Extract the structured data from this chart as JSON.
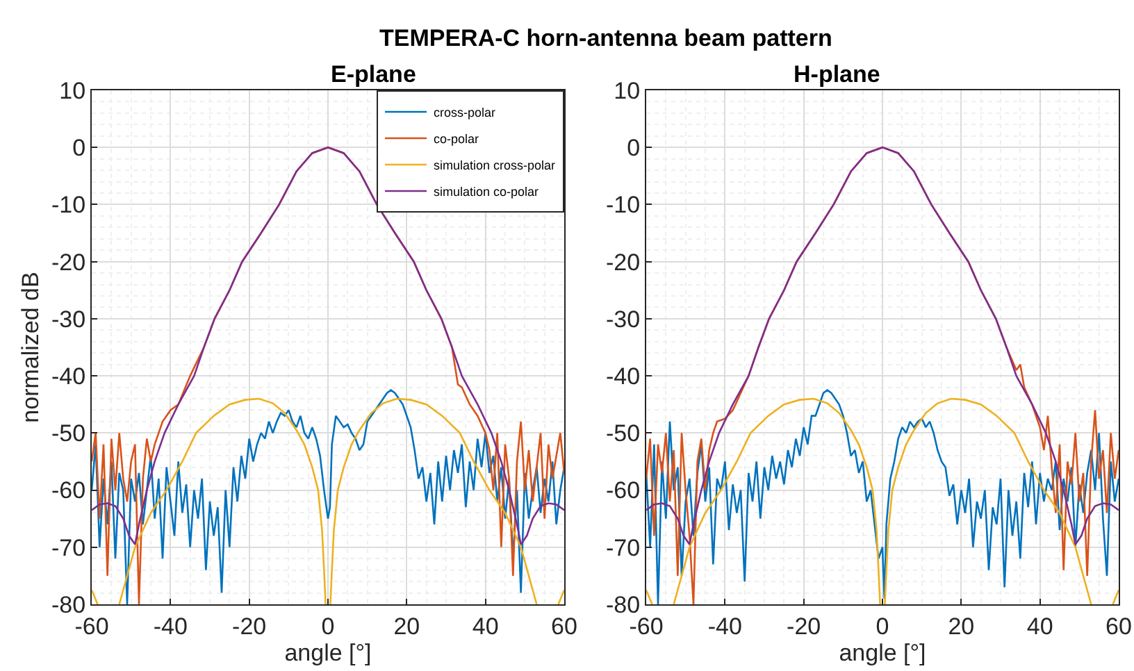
{
  "chart_data": [
    {
      "type": "line",
      "title": "E-plane",
      "xlabel": "angle [°]",
      "ylabel": "normalized dB",
      "annotations": [
        "TEMPERA-C horn-antenna beam pattern"
      ],
      "xlim": [
        -60,
        60
      ],
      "ylim": [
        -80,
        10
      ],
      "xticks": [
        -60,
        -40,
        -20,
        0,
        20,
        40,
        60
      ],
      "yticks": [
        -80,
        -70,
        -60,
        -50,
        -40,
        -30,
        -20,
        -10,
        0,
        10
      ],
      "grid": true,
      "legend": "top right",
      "marker": "none",
      "line_style": "solid",
      "series": [
        {
          "name": "cross-polar",
          "color": "#0072bd",
          "x": [
            -60,
            -59,
            -58,
            -57,
            -56,
            -55,
            -54,
            -53,
            -52,
            -51,
            -50,
            -49,
            -48,
            -47,
            -46,
            -45,
            -44,
            -43,
            -42,
            -41,
            -40,
            -39,
            -38,
            -37,
            -36,
            -35,
            -34,
            -33,
            -32,
            -31,
            -30,
            -29,
            -28,
            -27,
            -26,
            -25,
            -24,
            -23,
            -22,
            -21,
            -20,
            -19,
            -18,
            -17,
            -16,
            -15,
            -14,
            -13,
            -12,
            -11,
            -10,
            -9,
            -8,
            -7,
            -6,
            -5,
            -4,
            -3,
            -2,
            -1,
            0,
            0.5,
            1,
            2,
            3,
            4,
            5,
            6,
            7,
            8,
            9,
            10,
            11,
            12,
            13,
            14,
            15,
            16,
            17,
            18,
            19,
            20,
            21,
            22,
            23,
            24,
            25,
            26,
            27,
            28,
            29,
            30,
            31,
            32,
            33,
            34,
            35,
            36,
            37,
            38,
            39,
            40,
            41,
            42,
            43,
            44,
            45,
            46,
            47,
            48,
            49,
            50,
            51,
            52,
            53,
            54,
            55,
            56,
            57,
            58,
            59,
            60
          ],
          "values": [
            -60,
            -52,
            -70,
            -58,
            -66,
            -55,
            -72,
            -57,
            -60,
            -80,
            -58,
            -62,
            -57,
            -66,
            -60,
            -54,
            -65,
            -58,
            -72,
            -56,
            -62,
            -68,
            -55,
            -64,
            -59,
            -70,
            -60,
            -65,
            -58,
            -74,
            -62,
            -68,
            -63,
            -78,
            -60,
            -70,
            -56,
            -62,
            -54,
            -58,
            -51,
            -55,
            -52,
            -50,
            -51,
            -48,
            -50,
            -48,
            -46.5,
            -47,
            -46,
            -48,
            -49,
            -47,
            -50,
            -51,
            -49,
            -51,
            -54,
            -60,
            -65,
            -63,
            -52,
            -47,
            -48,
            -49,
            -48.5,
            -50,
            -51,
            -53,
            -52,
            -48,
            -47,
            -46,
            -45,
            -44,
            -43,
            -42.5,
            -43,
            -44,
            -45,
            -47,
            -49,
            -53,
            -58,
            -56,
            -62,
            -57,
            -66,
            -55,
            -62,
            -54,
            -60,
            -53,
            -57,
            -52,
            -63,
            -55,
            -60,
            -51,
            -56,
            -50,
            -57,
            -54,
            -62,
            -56,
            -65,
            -58,
            -72,
            -60,
            -78,
            -57,
            -65,
            -60,
            -56,
            -64,
            -58,
            -62,
            -55,
            -66,
            -60,
            -56
          ]
        },
        {
          "name": "co-polar",
          "color": "#d95319",
          "x": [
            -60,
            -59,
            -58,
            -57,
            -56,
            -55,
            -54,
            -53,
            -52,
            -51,
            -50,
            -49,
            -48,
            -47,
            -46,
            -45,
            -44,
            -43,
            -42,
            -41,
            -40,
            -38,
            -35,
            -31.5,
            -28.8,
            -25,
            -21.8,
            -17,
            -12.4,
            -8,
            -4,
            0,
            4,
            8,
            12.4,
            17,
            21.8,
            25,
            28.8,
            31.5,
            33,
            34,
            36,
            38,
            40,
            41,
            42,
            43,
            44,
            45,
            46,
            47,
            48,
            49,
            50,
            51,
            52,
            53,
            54,
            55,
            56,
            57,
            58,
            59,
            60
          ],
          "values": [
            -55,
            -50,
            -65,
            -52,
            -75,
            -51,
            -60,
            -50,
            -58,
            -62,
            -55,
            -52,
            -80,
            -58,
            -51,
            -55,
            -52,
            -50,
            -48,
            -47,
            -46,
            -45,
            -40,
            -35,
            -30,
            -25,
            -20,
            -15,
            -10,
            -4.2,
            -1,
            0,
            -1,
            -4.2,
            -10,
            -15,
            -20,
            -25,
            -30,
            -35,
            -41.5,
            -42,
            -45,
            -47,
            -50,
            -53,
            -60,
            -50,
            -70,
            -52,
            -58,
            -75,
            -55,
            -48,
            -60,
            -53,
            -62,
            -56,
            -50,
            -65,
            -52,
            -58,
            -54,
            -50,
            -57
          ]
        },
        {
          "name": "simulation cross-polar",
          "color": "#edb120",
          "x": [
            -60,
            -58.5,
            null,
            -53,
            -51,
            -49,
            -45,
            -41,
            -37,
            -33.5,
            -29,
            -25,
            -21,
            -17.5,
            -14,
            -11,
            -8,
            -6,
            -4,
            -2.5,
            -1.5,
            -1,
            -0.6,
            null,
            0.6,
            1,
            1.5,
            2.5,
            4,
            6,
            8,
            11,
            14,
            17.5,
            21,
            25,
            29,
            33.5,
            37,
            41,
            45,
            49,
            51,
            53,
            null,
            58.5,
            60
          ],
          "values": [
            -77.5,
            -80,
            null,
            -80,
            -75,
            -70,
            -64,
            -60,
            -55,
            -50,
            -47,
            -45,
            -44.2,
            -44,
            -44.8,
            -46.5,
            -49.5,
            -52,
            -56,
            -60,
            -67,
            -74,
            -80,
            null,
            -80,
            -74,
            -67,
            -60,
            -56,
            -52,
            -49.5,
            -46.5,
            -44.8,
            -44,
            -44.2,
            -45,
            -47,
            -50,
            -55,
            -60,
            -64,
            -70,
            -75,
            -80,
            null,
            -80,
            -77.5
          ]
        },
        {
          "name": "simulation co-polar",
          "color": "#7e2f8e",
          "x": [
            -60,
            -58,
            -56,
            -54,
            -52,
            -50.5,
            -49,
            -48,
            -46,
            -44,
            -41.5,
            -38,
            -34,
            -31.5,
            -28.8,
            -25,
            -21.8,
            -17,
            -12.4,
            -8,
            -4,
            0,
            4,
            8,
            12.4,
            17,
            21.8,
            25,
            28.8,
            31.5,
            34,
            38,
            41.5,
            44,
            46,
            48,
            49,
            50.5,
            52,
            54,
            56,
            58,
            60
          ],
          "values": [
            -63.5,
            -62.5,
            -62.3,
            -62.8,
            -65,
            -68,
            -69.5,
            -66,
            -60,
            -55,
            -50,
            -45,
            -40,
            -35,
            -30,
            -25,
            -20,
            -15,
            -10,
            -4.2,
            -1,
            0,
            -1,
            -4.2,
            -10,
            -15,
            -20,
            -25,
            -30,
            -35,
            -40,
            -45,
            -50,
            -55,
            -60,
            -66,
            -69.5,
            -68,
            -65,
            -62.8,
            -62.3,
            -62.5,
            -63.5
          ]
        }
      ]
    },
    {
      "type": "line",
      "title": "H-plane",
      "xlabel": "angle [°]",
      "xlim": [
        -60,
        60
      ],
      "ylim": [
        -80,
        10
      ],
      "xticks": [
        -60,
        -40,
        -20,
        0,
        20,
        40,
        60
      ],
      "yticks": [
        -80,
        -70,
        -60,
        -50,
        -40,
        -30,
        -20,
        -10,
        0,
        10
      ],
      "grid": true,
      "marker": "none",
      "line_style": "solid",
      "series": [
        {
          "color": "#0072bd",
          "x": [
            -60,
            -59,
            -58,
            -57,
            -56,
            -55,
            -54,
            -53,
            -52,
            -51,
            -50,
            -49,
            -48,
            -47,
            -46,
            -45,
            -44,
            -43,
            -42,
            -41,
            -40,
            -39,
            -38,
            -37,
            -36,
            -35,
            -34,
            -33,
            -32,
            -31,
            -30,
            -29,
            -28,
            -27,
            -26,
            -25,
            -24,
            -23,
            -22,
            -21,
            -20,
            -19,
            -18,
            -17,
            -16,
            -15,
            -14,
            -13,
            -12,
            -11,
            -10,
            -9,
            -8,
            -7,
            -6,
            -5,
            -4,
            -3,
            -2,
            -1,
            0,
            0.5,
            1,
            2,
            3,
            4,
            5,
            6,
            7,
            8,
            9,
            10,
            11,
            12,
            13,
            14,
            15,
            16,
            17,
            18,
            19,
            20,
            21,
            22,
            23,
            24,
            25,
            26,
            27,
            28,
            29,
            30,
            31,
            32,
            33,
            34,
            35,
            36,
            37,
            38,
            39,
            40,
            41,
            42,
            43,
            44,
            45,
            46,
            47,
            48,
            49,
            50,
            51,
            52,
            53,
            54,
            55,
            56,
            57,
            58,
            59,
            60
          ],
          "values": [
            -57,
            -70,
            -52,
            -80,
            -55,
            -65,
            -48,
            -60,
            -56,
            -75,
            -62,
            -58,
            -68,
            -57,
            -52,
            -62,
            -56,
            -73,
            -58,
            -60,
            -55,
            -67,
            -59,
            -64,
            -60,
            -76,
            -57,
            -62,
            -55,
            -65,
            -56,
            -60,
            -54,
            -58,
            -55,
            -59,
            -53,
            -56,
            -51,
            -54,
            -49,
            -52,
            -47,
            -47,
            -45,
            -43,
            -42.5,
            -43,
            -44,
            -45,
            -47,
            -50,
            -54,
            -53,
            -57,
            -55,
            -62,
            -60,
            -66,
            -72,
            -70,
            -79,
            -66,
            -58,
            -55,
            -51,
            -49,
            -50,
            -48,
            -49,
            -48,
            -47.5,
            -49,
            -48,
            -50,
            -53,
            -55,
            -56,
            -61,
            -59,
            -66,
            -60,
            -64,
            -58,
            -70,
            -62,
            -65,
            -60,
            -74,
            -63,
            -66,
            -58,
            -77,
            -60,
            -68,
            -62,
            -72,
            -57,
            -63,
            -55,
            -66,
            -57,
            -62,
            -58,
            -60,
            -55,
            -67,
            -58,
            -62,
            -56,
            -70,
            -59,
            -64,
            -57,
            -53,
            -60,
            -50,
            -65,
            -75,
            -55,
            -62,
            -58
          ]
        },
        {
          "color": "#d95319",
          "x": [
            -60,
            -59,
            -58,
            -57,
            -56,
            -55,
            -54,
            -53,
            -52,
            -51,
            -50,
            -49,
            -48,
            -47,
            -46,
            -45,
            -44,
            -43,
            -42,
            -40,
            -38,
            -34,
            -31.5,
            -28.8,
            -25,
            -21.8,
            -17,
            -12.4,
            -8,
            -4,
            0,
            4,
            8,
            12.4,
            17,
            21.8,
            25,
            28.8,
            31.5,
            34,
            35,
            36,
            38,
            40,
            41,
            42,
            43,
            44,
            45,
            46,
            47,
            48,
            49,
            50,
            51,
            52,
            53,
            54,
            55,
            56,
            57,
            58,
            59,
            60
          ],
          "values": [
            -58,
            -51,
            -68,
            -52,
            -57,
            -50,
            -62,
            -53,
            -75,
            -50,
            -60,
            -68,
            -80,
            -55,
            -51,
            -60,
            -53,
            -50,
            -48,
            -47.5,
            -46,
            -40,
            -35,
            -30,
            -25,
            -20,
            -15,
            -10,
            -4.2,
            -1,
            0,
            -1,
            -4.2,
            -10,
            -15,
            -20,
            -25,
            -30,
            -35,
            -39,
            -38,
            -42,
            -45,
            -49,
            -53,
            -47,
            -56,
            -64,
            -52,
            -74,
            -55,
            -59,
            -50,
            -62,
            -57,
            -75,
            -55,
            -46,
            -58,
            -53,
            -64,
            -50,
            -58,
            -53
          ]
        },
        {
          "color": "#edb120",
          "x": [
            -60,
            -58.5,
            null,
            -53,
            -51,
            -49,
            -45,
            -41,
            -37,
            -33.5,
            -29,
            -25,
            -21,
            -17.5,
            -14,
            -11,
            -8,
            -6,
            -4,
            -2.5,
            -1.5,
            -1,
            -0.6,
            null,
            0.6,
            1,
            1.5,
            2.5,
            4,
            6,
            8,
            11,
            14,
            17.5,
            21,
            25,
            29,
            33.5,
            37,
            41,
            45,
            49,
            51,
            53,
            null,
            58.5,
            60
          ],
          "values": [
            -77.5,
            -80,
            null,
            -80,
            -75,
            -70,
            -64,
            -60,
            -55,
            -50,
            -47,
            -45,
            -44.2,
            -44,
            -44.8,
            -46.5,
            -49.5,
            -52,
            -56,
            -60,
            -67,
            -74,
            -80,
            null,
            -80,
            -74,
            -67,
            -60,
            -56,
            -52,
            -49.5,
            -46.5,
            -44.8,
            -44,
            -44.2,
            -45,
            -47,
            -50,
            -55,
            -60,
            -64,
            -70,
            -75,
            -80,
            null,
            -80,
            -77.5
          ]
        },
        {
          "color": "#7e2f8e",
          "x": [
            -60,
            -58,
            -56,
            -54,
            -52,
            -50.5,
            -49,
            -48,
            -46,
            -44,
            -41.5,
            -38,
            -34,
            -31.5,
            -28.8,
            -25,
            -21.8,
            -17,
            -12.4,
            -8,
            -4,
            0,
            4,
            8,
            12.4,
            17,
            21.8,
            25,
            28.8,
            31.5,
            34,
            38,
            41.5,
            44,
            46,
            48,
            49,
            50.5,
            52,
            54,
            56,
            58,
            60
          ],
          "values": [
            -63.5,
            -62.5,
            -62.3,
            -62.8,
            -65,
            -68,
            -69.5,
            -66,
            -60,
            -55,
            -50,
            -45,
            -40,
            -35,
            -30,
            -25,
            -20,
            -15,
            -10,
            -4.2,
            -1,
            0,
            -1,
            -4.2,
            -10,
            -15,
            -20,
            -25,
            -30,
            -35,
            -40,
            -45,
            -50,
            -55,
            -60,
            -66,
            -69.5,
            -68,
            -65,
            -62.8,
            -62.3,
            -62.5,
            -63.5
          ]
        }
      ]
    }
  ]
}
